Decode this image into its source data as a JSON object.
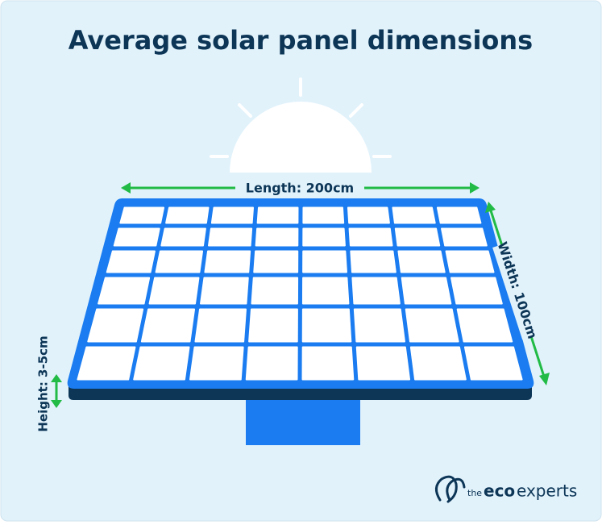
{
  "header": {
    "title": "Average solar panel dimensions"
  },
  "dimensions": {
    "length": "Length: 200cm",
    "width": "Width: 100cm",
    "height": "Height: 3-5cm"
  },
  "logo": {
    "prefix": "the",
    "brand": "eco",
    "suffix": "experts"
  }
}
